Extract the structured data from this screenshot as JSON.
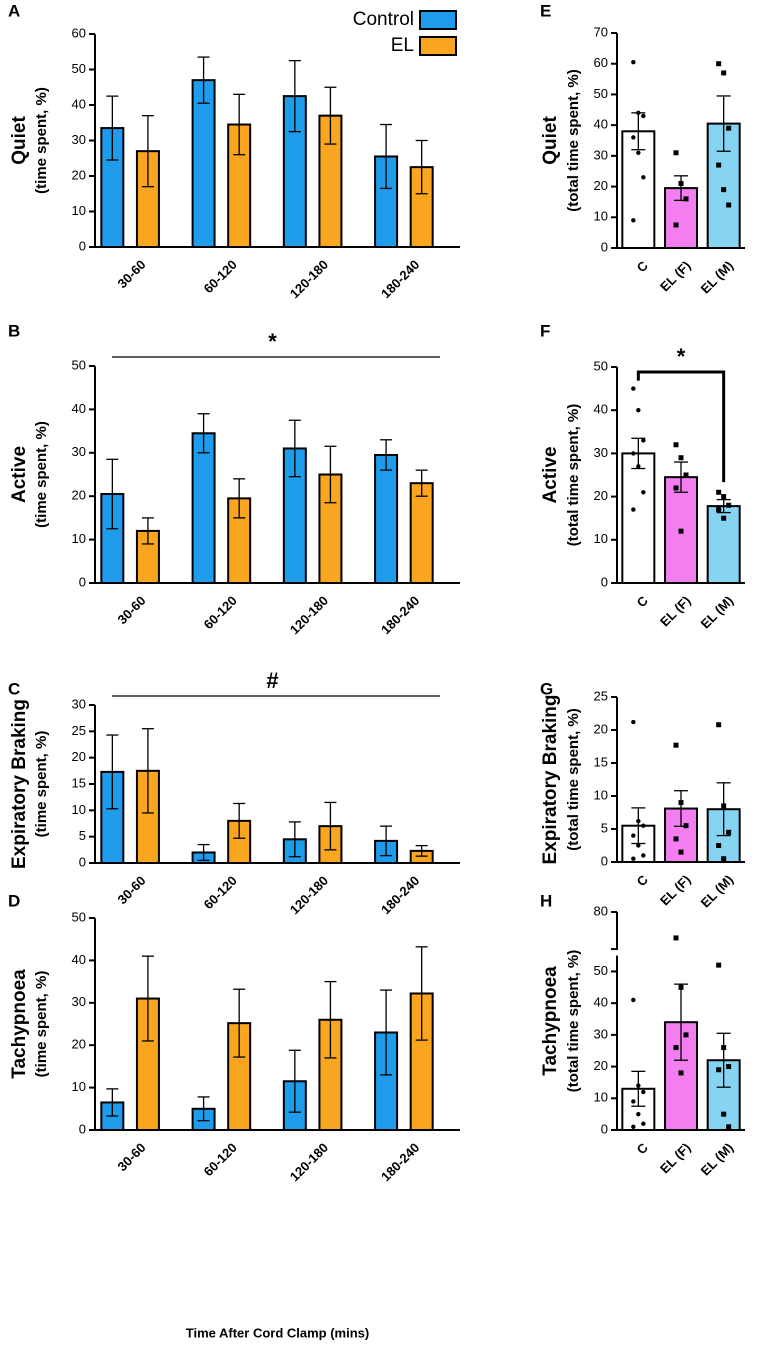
{
  "chart_data": [
    {
      "type": "bar",
      "panel": "A",
      "ylabel": "Quiet",
      "ylabel_sub": "(time spent, %)",
      "categories": [
        "30-60",
        "60-120",
        "120-180",
        "180-240"
      ],
      "series": [
        {
          "name": "Control",
          "color": "#1e9bea",
          "values": [
            33.5,
            47,
            42.5,
            25.5
          ],
          "errors": [
            9,
            6.5,
            10,
            9
          ]
        },
        {
          "name": "EL",
          "color": "#f9a51f",
          "values": [
            27,
            34.5,
            37,
            22.5
          ],
          "errors": [
            10,
            8.5,
            8,
            7.5
          ]
        }
      ],
      "ylim": [
        0,
        60
      ],
      "yticks": [
        0,
        10,
        20,
        30,
        40,
        50,
        60
      ],
      "legend": "top-right"
    },
    {
      "type": "bar",
      "panel": "B",
      "ylabel": "Active",
      "ylabel_sub": "(time spent, %)",
      "annotation": "*",
      "categories": [
        "30-60",
        "60-120",
        "120-180",
        "180-240"
      ],
      "series": [
        {
          "name": "Control",
          "color": "#1e9bea",
          "values": [
            20.5,
            34.5,
            31,
            29.5
          ],
          "errors": [
            8,
            4.5,
            6.5,
            3.5
          ]
        },
        {
          "name": "EL",
          "color": "#f9a51f",
          "values": [
            12,
            19.5,
            25,
            23
          ],
          "errors": [
            3,
            4.5,
            6.5,
            3
          ]
        }
      ],
      "ylim": [
        0,
        50
      ],
      "yticks": [
        0,
        10,
        20,
        30,
        40,
        50
      ]
    },
    {
      "type": "bar",
      "panel": "C",
      "ylabel": "Expiratory Braking",
      "ylabel_sub": "(time spent, %)",
      "annotation": "#",
      "categories": [
        "30-60",
        "60-120",
        "120-180",
        "180-240"
      ],
      "series": [
        {
          "name": "Control",
          "color": "#1e9bea",
          "values": [
            17.3,
            2,
            4.5,
            4.2
          ],
          "errors": [
            7,
            1.5,
            3.3,
            2.8
          ]
        },
        {
          "name": "EL",
          "color": "#f9a51f",
          "values": [
            17.5,
            8,
            7,
            2.3
          ],
          "errors": [
            8,
            3.3,
            4.5,
            1
          ]
        }
      ],
      "ylim": [
        0,
        30
      ],
      "yticks": [
        0,
        5,
        10,
        15,
        20,
        25,
        30
      ]
    },
    {
      "type": "bar",
      "panel": "D",
      "ylabel": "Tachypnoea",
      "ylabel_sub": "(time spent, %)",
      "xlabel": "Time After Cord Clamp (mins)",
      "categories": [
        "30-60",
        "60-120",
        "120-180",
        "180-240"
      ],
      "series": [
        {
          "name": "Control",
          "color": "#1e9bea",
          "values": [
            6.5,
            5,
            11.5,
            23
          ],
          "errors": [
            3.2,
            2.8,
            7.3,
            10
          ]
        },
        {
          "name": "EL",
          "color": "#f9a51f",
          "values": [
            31,
            25.2,
            26,
            32.2
          ],
          "errors": [
            10,
            8,
            9,
            11
          ]
        }
      ],
      "ylim": [
        0,
        50
      ],
      "yticks": [
        0,
        10,
        20,
        30,
        40,
        50
      ]
    },
    {
      "type": "dotbar",
      "panel": "E",
      "ylabel": "Quiet",
      "ylabel_sub": "(total time spent, %)",
      "categories": [
        "C",
        "EL (F)",
        "EL (M)"
      ],
      "colors": [
        "#ffffff",
        "#f27ef0",
        "#86d4f2"
      ],
      "markers": [
        "circle",
        "square",
        "square"
      ],
      "values": [
        38,
        19.5,
        40.5
      ],
      "errors": [
        6,
        4,
        9
      ],
      "points": [
        [
          60.5,
          44,
          43,
          36,
          31,
          23,
          9
        ],
        [
          31,
          21,
          16,
          7.5
        ],
        [
          60,
          57,
          39,
          27,
          19,
          14
        ]
      ],
      "ylim": [
        0,
        70
      ],
      "yticks": [
        0,
        10,
        20,
        30,
        40,
        50,
        60,
        70
      ]
    },
    {
      "type": "dotbar",
      "panel": "F",
      "ylabel": "Active",
      "ylabel_sub": "(total time spent, %)",
      "annotation": "*",
      "categories": [
        "C",
        "EL (F)",
        "EL (M)"
      ],
      "colors": [
        "#ffffff",
        "#f27ef0",
        "#86d4f2"
      ],
      "markers": [
        "circle",
        "square",
        "square"
      ],
      "values": [
        30,
        24.5,
        17.8
      ],
      "errors": [
        3.5,
        3.5,
        1.5
      ],
      "points": [
        [
          45,
          40,
          33,
          30,
          27,
          21,
          17
        ],
        [
          32,
          29,
          25,
          22,
          12
        ],
        [
          21,
          20,
          18,
          17,
          15
        ]
      ],
      "ylim": [
        0,
        50
      ],
      "yticks": [
        0,
        10,
        20,
        30,
        40,
        50
      ]
    },
    {
      "type": "dotbar",
      "panel": "G",
      "ylabel": "Expiratory Braking",
      "ylabel_sub": "(total time spent, %)",
      "categories": [
        "C",
        "EL (F)",
        "EL (M)"
      ],
      "colors": [
        "#ffffff",
        "#f27ef0",
        "#86d4f2"
      ],
      "markers": [
        "circle",
        "square",
        "square"
      ],
      "values": [
        5.5,
        8.1,
        8
      ],
      "errors": [
        2.7,
        2.7,
        4
      ],
      "points": [
        [
          21.2,
          6.2,
          5.5,
          4,
          2.5,
          1,
          0.5
        ],
        [
          17.7,
          9,
          5.5,
          3.5,
          1.5
        ],
        [
          20.8,
          8.5,
          4.5,
          2.5,
          0.5
        ]
      ],
      "ylim": [
        0,
        25
      ],
      "yticks": [
        0,
        5,
        10,
        15,
        20,
        25
      ]
    },
    {
      "type": "dotbar",
      "panel": "H",
      "ylabel": "Tachypnoea",
      "ylabel_sub": "(total time spent, %)",
      "categories": [
        "C",
        "EL (F)",
        "EL (M)"
      ],
      "colors": [
        "#ffffff",
        "#f27ef0",
        "#86d4f2"
      ],
      "markers": [
        "circle",
        "square",
        "square"
      ],
      "values": [
        13,
        34,
        22
      ],
      "errors": [
        5.5,
        12,
        8.5
      ],
      "points": [
        [
          41,
          14,
          12,
          9,
          5,
          2,
          1
        ],
        [
          73,
          45,
          30,
          26,
          18
        ],
        [
          52,
          26,
          20,
          19,
          5,
          1
        ]
      ],
      "ylim": [
        0,
        80
      ],
      "ybreak": [
        55,
        70
      ],
      "yticks": [
        0,
        10,
        20,
        30,
        40,
        50,
        80
      ]
    }
  ]
}
